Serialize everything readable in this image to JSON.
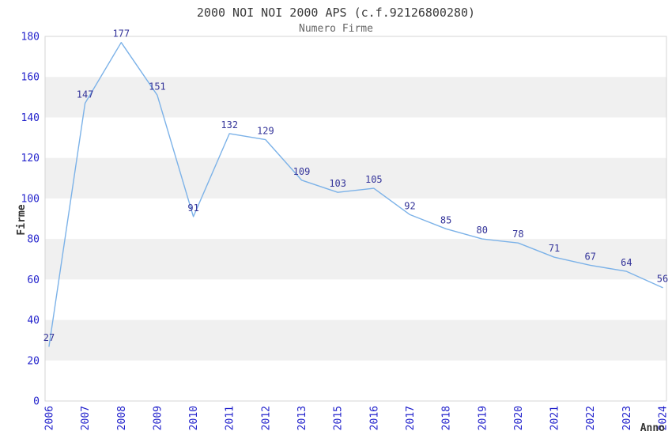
{
  "header": {
    "title": "2000 NOI NOI 2000 APS (c.f.92126800280)",
    "subtitle": "Numero Firme"
  },
  "chart_data": {
    "type": "line",
    "title": "2000 NOI NOI 2000 APS (c.f.92126800280)",
    "subtitle": "Numero Firme",
    "xlabel": "Anno",
    "ylabel": "Firme",
    "categories": [
      "2006",
      "2007",
      "2008",
      "2009",
      "2010",
      "2011",
      "2012",
      "2013",
      "2015",
      "2016",
      "2017",
      "2018",
      "2019",
      "2020",
      "2021",
      "2022",
      "2023",
      "2024"
    ],
    "values": [
      27,
      147,
      177,
      151,
      91,
      132,
      129,
      109,
      103,
      105,
      92,
      85,
      80,
      78,
      71,
      67,
      64,
      56
    ],
    "ylim": [
      0,
      180
    ],
    "ytick_step": 20,
    "yticks": [
      0,
      20,
      40,
      60,
      80,
      100,
      120,
      140,
      160,
      180
    ],
    "grid": "alternating-horizontal-bands",
    "legend_position": "none",
    "point_labels_visible": true,
    "x_tick_rotation_degrees": 90,
    "colors": {
      "line": "#7cb2e8",
      "tick_label": "#2222cc",
      "point_label": "#333399",
      "band": "#f0f0f0",
      "plot_border": "#d5d5d5",
      "title": "#3a3a3a",
      "subtitle": "#666666",
      "axis_title": "#333333",
      "background": "#ffffff"
    }
  }
}
